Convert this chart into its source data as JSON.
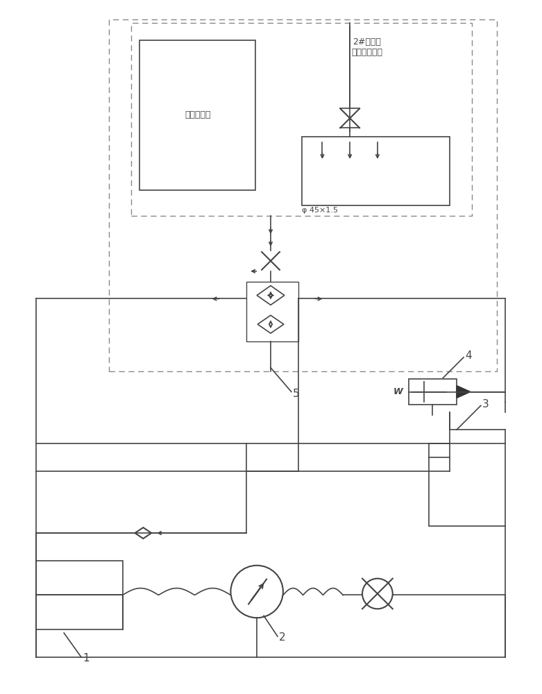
{
  "bg_color": "#ffffff",
  "lc": "#444444",
  "lw": 1.2,
  "lw2": 1.5,
  "labels": {
    "engine_tank": "2#发动机\n主油筱消耗舱",
    "fuel_tank": "飞机燃油筱",
    "phi": "φ 45×1.5",
    "W": "W",
    "n1": "1",
    "n2": "2",
    "n3": "3",
    "n4": "4",
    "n5": "5"
  },
  "figsize": [
    7.81,
    10.0
  ],
  "dpi": 100
}
